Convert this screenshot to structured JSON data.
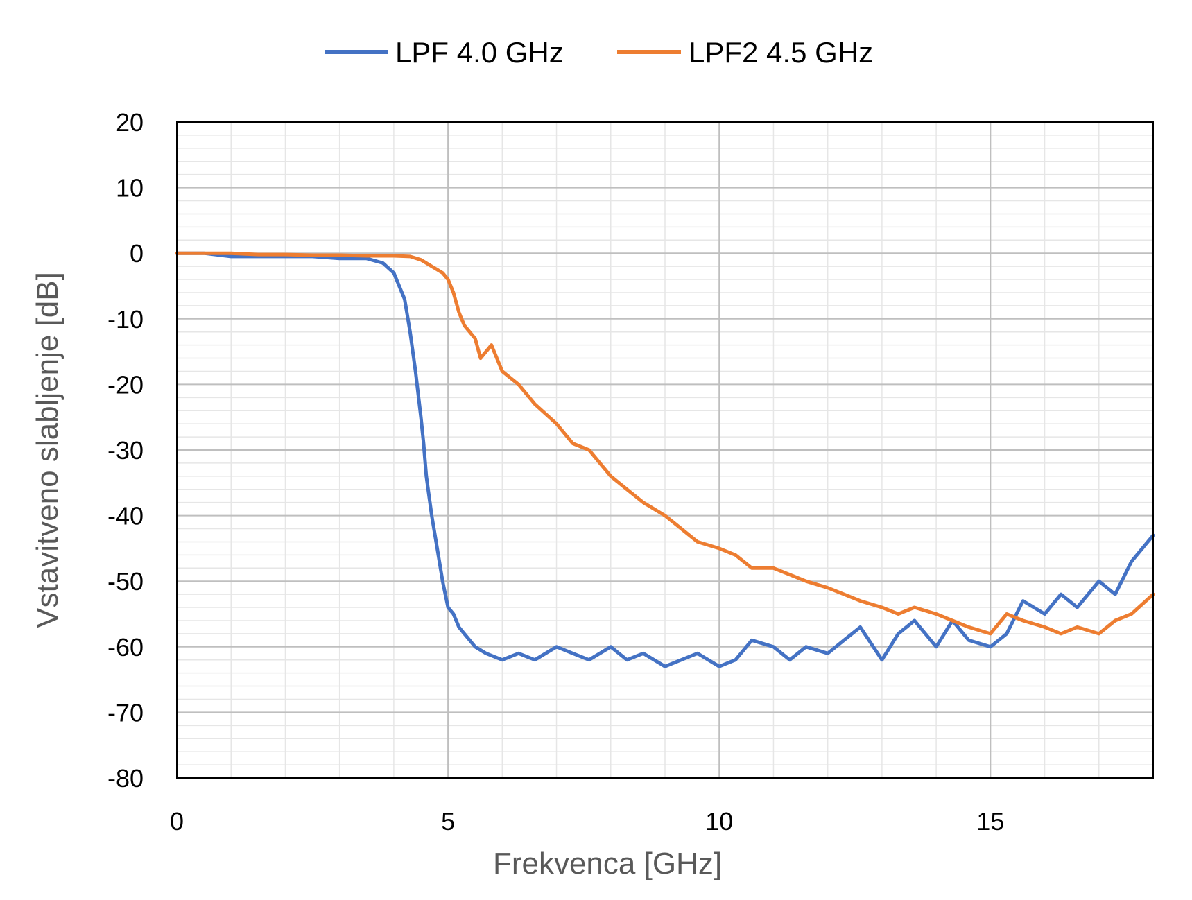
{
  "chart_data": {
    "type": "line",
    "xlabel": "Frekvenca [GHz]",
    "ylabel": "Vstavitveno slabljenje [dB]",
    "xlim": [
      0,
      18
    ],
    "ylim": [
      -80,
      20
    ],
    "xticks": [
      0,
      5,
      10,
      15
    ],
    "yticks": [
      20,
      10,
      0,
      -10,
      -20,
      -30,
      -40,
      -50,
      -60,
      -70,
      -80
    ],
    "grid": true,
    "legend_position": "top",
    "series": [
      {
        "name": "LPF 4.0 GHz",
        "color": "#4472C4",
        "x": [
          0,
          0.5,
          1.0,
          1.5,
          2.0,
          2.5,
          3.0,
          3.5,
          3.8,
          4.0,
          4.2,
          4.3,
          4.4,
          4.5,
          4.55,
          4.6,
          4.7,
          4.8,
          4.9,
          5.0,
          5.1,
          5.2,
          5.3,
          5.5,
          5.7,
          6.0,
          6.3,
          6.6,
          7.0,
          7.3,
          7.6,
          8.0,
          8.3,
          8.6,
          9.0,
          9.3,
          9.6,
          10.0,
          10.3,
          10.6,
          11.0,
          11.3,
          11.6,
          12.0,
          12.3,
          12.6,
          13.0,
          13.3,
          13.6,
          14.0,
          14.3,
          14.6,
          15.0,
          15.3,
          15.6,
          16.0,
          16.3,
          16.6,
          17.0,
          17.3,
          17.6,
          18.0
        ],
        "y": [
          0,
          0,
          -0.5,
          -0.5,
          -0.5,
          -0.5,
          -0.8,
          -0.8,
          -1.5,
          -3,
          -7,
          -12,
          -18,
          -25,
          -29,
          -34,
          -40,
          -45,
          -50,
          -54,
          -55,
          -57,
          -58,
          -60,
          -61,
          -62,
          -61,
          -62,
          -60,
          -61,
          -62,
          -60,
          -62,
          -61,
          -63,
          -62,
          -61,
          -63,
          -62,
          -59,
          -60,
          -62,
          -60,
          -61,
          -59,
          -57,
          -62,
          -58,
          -56,
          -60,
          -56,
          -59,
          -60,
          -58,
          -53,
          -55,
          -52,
          -54,
          -50,
          -52,
          -47,
          -43
        ]
      },
      {
        "name": "LPF2 4.5 GHz",
        "color": "#ED7D31",
        "x": [
          0,
          0.5,
          1.0,
          1.5,
          2.0,
          2.5,
          3.0,
          3.5,
          4.0,
          4.3,
          4.5,
          4.7,
          4.9,
          5.0,
          5.1,
          5.2,
          5.3,
          5.5,
          5.6,
          5.8,
          6.0,
          6.3,
          6.6,
          7.0,
          7.3,
          7.6,
          8.0,
          8.3,
          8.6,
          9.0,
          9.3,
          9.6,
          10.0,
          10.3,
          10.6,
          11.0,
          11.3,
          11.6,
          12.0,
          12.3,
          12.6,
          13.0,
          13.3,
          13.6,
          14.0,
          14.3,
          14.6,
          15.0,
          15.3,
          15.6,
          16.0,
          16.3,
          16.6,
          17.0,
          17.3,
          17.6,
          18.0
        ],
        "y": [
          0,
          0,
          0,
          -0.2,
          -0.2,
          -0.3,
          -0.3,
          -0.4,
          -0.4,
          -0.5,
          -1,
          -2,
          -3,
          -4,
          -6,
          -9,
          -11,
          -13,
          -16,
          -14,
          -18,
          -20,
          -23,
          -26,
          -29,
          -30,
          -34,
          -36,
          -38,
          -40,
          -42,
          -44,
          -45,
          -46,
          -48,
          -48,
          -49,
          -50,
          -51,
          -52,
          -53,
          -54,
          -55,
          -54,
          -55,
          -56,
          -57,
          -58,
          -55,
          -56,
          -57,
          -58,
          -57,
          -58,
          -56,
          -55,
          -52
        ]
      }
    ]
  }
}
